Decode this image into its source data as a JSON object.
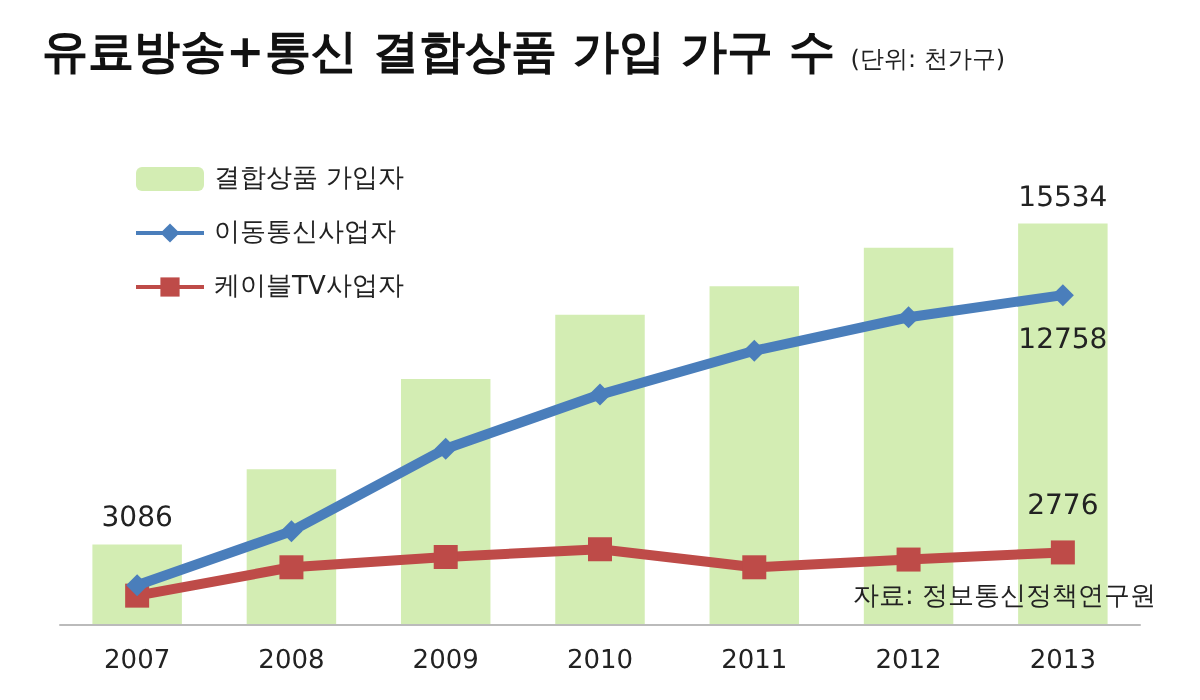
{
  "chart_data": {
    "type": "bar",
    "title": "유료방송+통신 결합상품 가입 가구 수",
    "subtitle": "(단위: 천가구)",
    "categories": [
      "2007",
      "2008",
      "2009",
      "2010",
      "2011",
      "2012",
      "2013"
    ],
    "series": [
      {
        "name": "결합상품 가입자",
        "color": "#d3edb3",
        "values": [
          3086,
          6000,
          9500,
          12000,
          13100,
          14600,
          15534
        ],
        "value_labels": [
          "3086",
          null,
          null,
          null,
          null,
          null,
          "15534"
        ]
      },
      {
        "name": "이동통신사업자",
        "type": "line",
        "color": "#4a7ebb",
        "marker": "diamond",
        "values": [
          1500,
          3600,
          6800,
          8900,
          10600,
          11900,
          12758
        ],
        "value_labels": [
          null,
          null,
          null,
          null,
          null,
          null,
          "12758"
        ]
      },
      {
        "name": "케이블TV사업자",
        "type": "line",
        "color": "#be4b48",
        "marker": "square",
        "values": [
          1100,
          2200,
          2600,
          2900,
          2200,
          2500,
          2776
        ],
        "value_labels": [
          null,
          null,
          null,
          null,
          null,
          null,
          "2776"
        ]
      }
    ],
    "annotations": [
      "자료: 정보통신정책연구원"
    ],
    "legend": "top left",
    "grid": false,
    "tick_labels": "x",
    "line_style": "solid"
  }
}
